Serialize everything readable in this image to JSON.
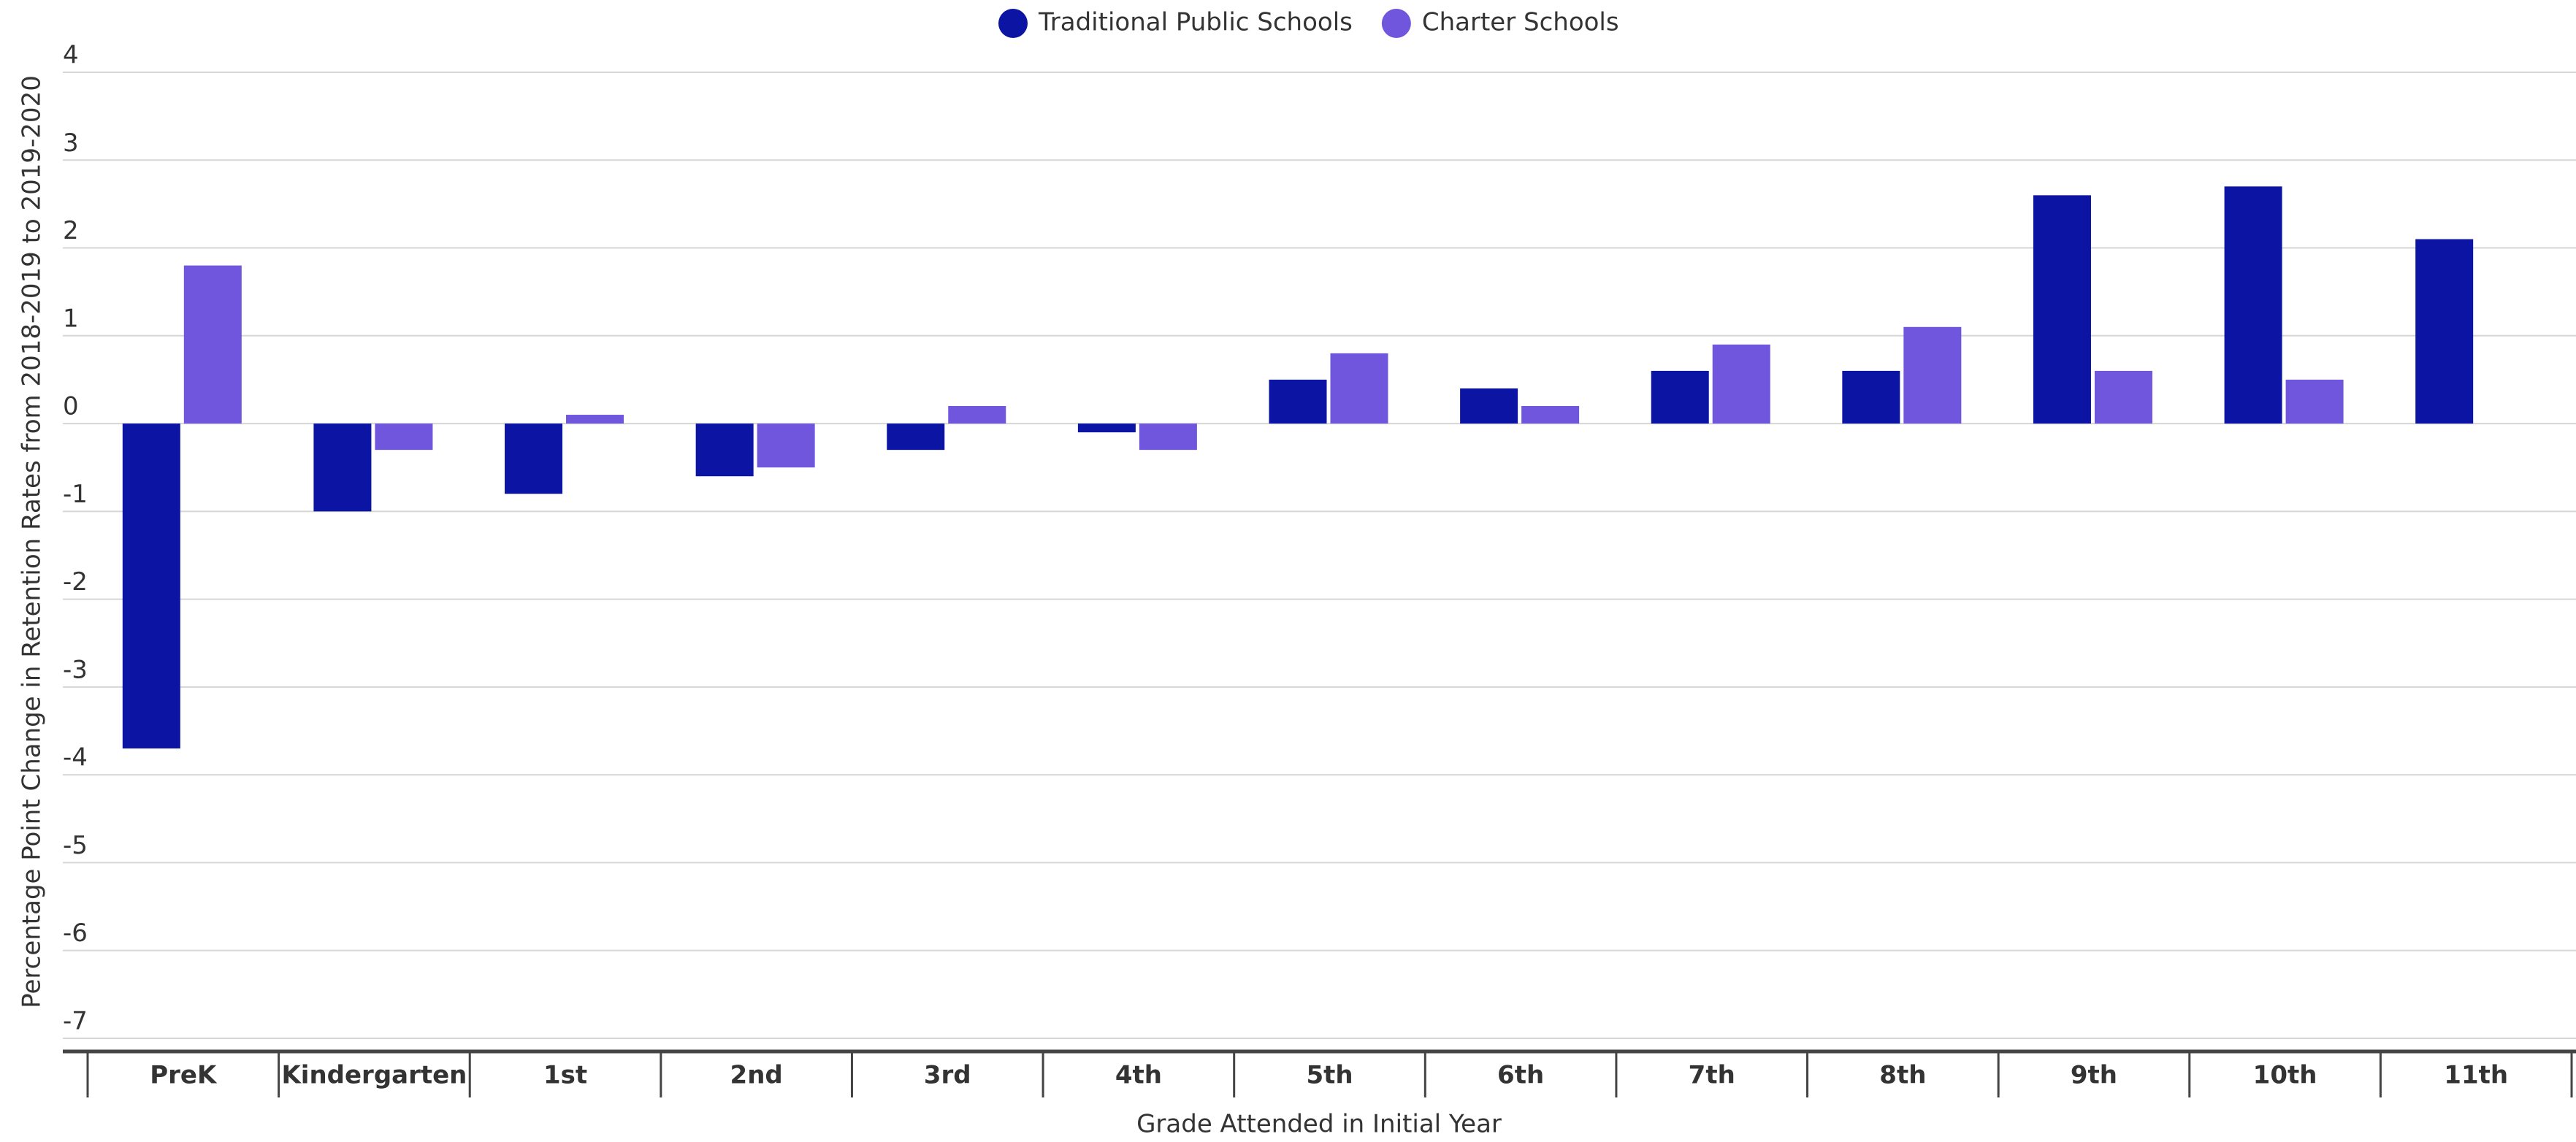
{
  "chart_data": {
    "type": "bar",
    "y_label": "Percentage Point Change in Retention Rates from 2018-2019 to 2019-2020",
    "x_label": "Grade Attended in Initial Year",
    "categories": [
      "PreK",
      "Kindergarten",
      "1st",
      "2nd",
      "3rd",
      "4th",
      "5th",
      "6th",
      "7th",
      "8th",
      "9th",
      "10th",
      "11th"
    ],
    "series": [
      {
        "name": "Traditional Public Schools",
        "color": "#0c14a3",
        "values": [
          -3.7,
          -1.0,
          -0.8,
          -0.6,
          -0.3,
          -0.1,
          0.5,
          0.4,
          0.6,
          0.6,
          2.6,
          2.7,
          2.1
        ]
      },
      {
        "name": "Charter Schools",
        "color": "#7055dd",
        "values": [
          1.8,
          -0.3,
          0.1,
          -0.5,
          0.2,
          -0.3,
          0.8,
          0.2,
          0.9,
          1.1,
          0.6,
          0.5,
          null
        ]
      }
    ],
    "ylim": [
      -7.15,
      4
    ],
    "yticks": [
      4,
      3,
      2,
      1,
      0,
      -1,
      -2,
      -3,
      -4,
      -5,
      -6,
      -7
    ],
    "grid": true
  }
}
